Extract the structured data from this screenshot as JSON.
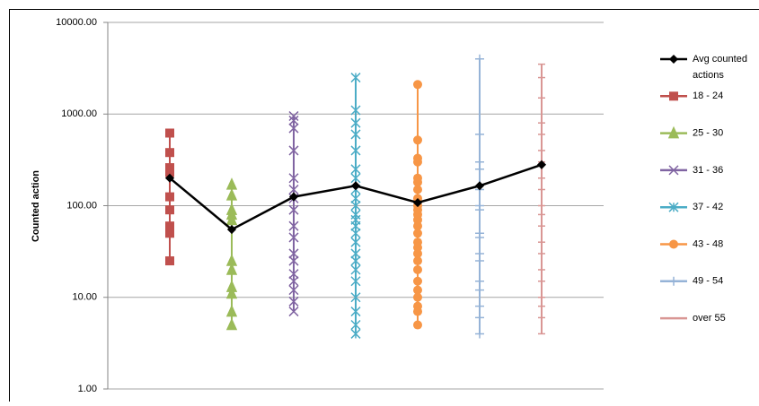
{
  "chart_data": {
    "type": "scatter",
    "y_label": "Counted action",
    "log_scale": true,
    "grid": true,
    "legend": "right",
    "xlim": [
      0,
      8
    ],
    "ylim": [
      1,
      10000
    ],
    "yticks": [
      {
        "value": 1,
        "label": "1.00"
      },
      {
        "value": 10,
        "label": "10.00"
      },
      {
        "value": 100,
        "label": "100.00"
      },
      {
        "value": 1000,
        "label": "1000.00"
      },
      {
        "value": 10000,
        "label": "10000.00"
      }
    ],
    "series": [
      {
        "name": "Avg counted actions",
        "color": "#000000",
        "marker": "diamond",
        "x": [
          1,
          2,
          3,
          4,
          5,
          6,
          7
        ],
        "values": [
          200,
          55,
          125,
          165,
          108,
          165,
          280
        ]
      },
      {
        "name": "18 - 24",
        "color": "#c0504d",
        "marker": "square",
        "x": 1,
        "values": [
          620,
          380,
          260,
          230,
          125,
          90,
          60,
          50,
          25
        ]
      },
      {
        "name": "25 - 30",
        "color": "#9bbb59",
        "marker": "triangle",
        "x": 2,
        "values": [
          170,
          130,
          90,
          80,
          70,
          25,
          20,
          13,
          11,
          7,
          5
        ]
      },
      {
        "name": "31 - 36",
        "color": "#8064a2",
        "marker": "x",
        "x": 3,
        "values": [
          950,
          850,
          700,
          400,
          200,
          150,
          120,
          90,
          60,
          45,
          30,
          25,
          18,
          15,
          12,
          9,
          7
        ]
      },
      {
        "name": "37 - 42",
        "color": "#4bacc6",
        "marker": "star",
        "x": 4,
        "values": [
          2500,
          1100,
          800,
          600,
          400,
          250,
          200,
          150,
          120,
          100,
          80,
          70,
          60,
          50,
          40,
          30,
          25,
          20,
          15,
          10,
          7,
          5,
          4
        ]
      },
      {
        "name": "43 - 48",
        "color": "#f79646",
        "marker": "circle",
        "x": 5,
        "values": [
          2100,
          520,
          330,
          300,
          200,
          180,
          150,
          120,
          100,
          90,
          80,
          70,
          60,
          50,
          40,
          35,
          30,
          25,
          20,
          15,
          12,
          10,
          8,
          7,
          5
        ]
      },
      {
        "name": "49 - 54",
        "color": "#95b3d7",
        "marker": "plus",
        "x": 6,
        "values": [
          4000,
          600,
          300,
          250,
          150,
          100,
          90,
          50,
          45,
          30,
          25,
          15,
          12,
          8,
          6,
          4
        ]
      },
      {
        "name": "over 55",
        "color": "#d99694",
        "marker": "dash",
        "x": 7,
        "values": [
          3500,
          2500,
          1500,
          800,
          600,
          400,
          300,
          200,
          150,
          100,
          80,
          60,
          40,
          30,
          20,
          15,
          10,
          8,
          6,
          4
        ]
      }
    ]
  }
}
